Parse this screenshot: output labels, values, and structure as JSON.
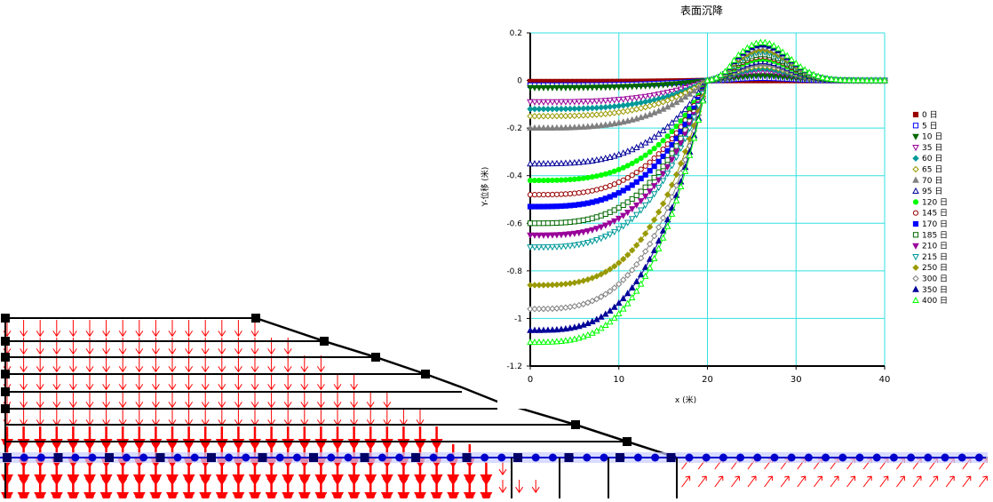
{
  "chart_data": {
    "type": "line",
    "title": "表面沉降",
    "xlabel": "x (米)",
    "ylabel": "Y-位移 (米)",
    "xlim": [
      0,
      40
    ],
    "ylim": [
      -1.2,
      0.2
    ],
    "xticks": [
      0,
      10,
      20,
      30,
      40
    ],
    "xtick_labels": [
      "0",
      "10",
      "20",
      "30",
      "40"
    ],
    "yticks": [
      0.2,
      0,
      -0.2,
      -0.4,
      -0.6,
      -0.8,
      -1,
      -1.2
    ],
    "ytick_labels": [
      "0.2",
      "0",
      "-0.2",
      "-0.4",
      "-0.6",
      "-0.8",
      "-1",
      "-1.2"
    ],
    "grid": true,
    "legend_position": "right",
    "series": [
      {
        "name": "0 日",
        "color": "#990000",
        "marker": "square-filled",
        "flat": -0.005,
        "peak": 0.0
      },
      {
        "name": "5 日",
        "color": "#0000ff",
        "marker": "square-open",
        "flat": -0.02,
        "peak": 0.01
      },
      {
        "name": "10 日",
        "color": "#006600",
        "marker": "tri-down-filled",
        "flat": -0.03,
        "peak": 0.02
      },
      {
        "name": "35 日",
        "color": "#990099",
        "marker": "tri-down-open",
        "flat": -0.09,
        "peak": 0.04
      },
      {
        "name": "60 日",
        "color": "#009999",
        "marker": "diamond-filled",
        "flat": -0.12,
        "peak": 0.05
      },
      {
        "name": "65 日",
        "color": "#999900",
        "marker": "diamond-open",
        "flat": -0.15,
        "peak": 0.06
      },
      {
        "name": "70 日",
        "color": "#808080",
        "marker": "tri-up-filled",
        "flat": -0.2,
        "peak": 0.07
      },
      {
        "name": "95 日",
        "color": "#000099",
        "marker": "tri-up-open",
        "flat": -0.35,
        "peak": 0.08
      },
      {
        "name": "120 日",
        "color": "#00ff00",
        "marker": "circle-filled",
        "flat": -0.42,
        "peak": 0.09
      },
      {
        "name": "145 日",
        "color": "#990000",
        "marker": "circle-open",
        "flat": -0.48,
        "peak": 0.1
      },
      {
        "name": "170 日",
        "color": "#0000ff",
        "marker": "square-filled",
        "flat": -0.53,
        "peak": 0.11
      },
      {
        "name": "185 日",
        "color": "#006600",
        "marker": "square-open",
        "flat": -0.6,
        "peak": 0.11
      },
      {
        "name": "210 日",
        "color": "#990099",
        "marker": "tri-down-filled",
        "flat": -0.65,
        "peak": 0.12
      },
      {
        "name": "215 日",
        "color": "#009999",
        "marker": "tri-down-open",
        "flat": -0.7,
        "peak": 0.12
      },
      {
        "name": "250 日",
        "color": "#999900",
        "marker": "diamond-filled",
        "flat": -0.86,
        "peak": 0.13
      },
      {
        "name": "300 日",
        "color": "#808080",
        "marker": "diamond-open",
        "flat": -0.96,
        "peak": 0.14
      },
      {
        "name": "350 日",
        "color": "#000099",
        "marker": "tri-up-filled",
        "flat": -1.05,
        "peak": 0.15
      },
      {
        "name": "400 日",
        "color": "#00ff00",
        "marker": "tri-up-open",
        "flat": -1.1,
        "peak": 0.16
      }
    ]
  },
  "mesh_view": {
    "boundary_color": "#000000",
    "vector_color": "#ff0000",
    "highlight_color": "#0000cc"
  }
}
